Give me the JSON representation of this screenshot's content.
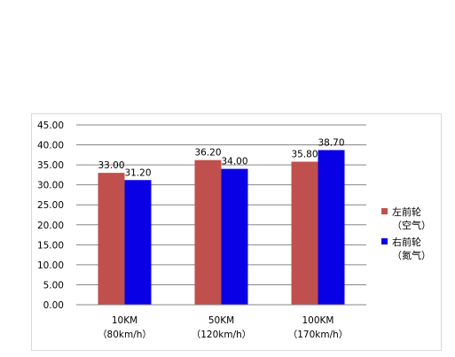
{
  "chart_data": {
    "type": "bar",
    "categories": [
      "10KM",
      "50KM",
      "100KM"
    ],
    "category_sublabels": [
      "（80km/h）",
      "（120km/h）",
      "（170km/h）"
    ],
    "series": [
      {
        "name": "左前轮（空气）",
        "label_line1": "左前轮",
        "label_line2": "（空气）",
        "color": "#C0504D",
        "values": [
          33.0,
          36.2,
          35.8
        ],
        "value_labels": [
          "33.00",
          "36.20",
          "35.80"
        ]
      },
      {
        "name": "右前轮（氮气）",
        "label_line1": "右前轮",
        "label_line2": "（氮气）",
        "color": "#0A00E6",
        "values": [
          31.2,
          34.0,
          38.7
        ],
        "value_labels": [
          "31.20",
          "34.00",
          "38.70"
        ]
      }
    ],
    "y_ticks": [
      "0.00",
      "5.00",
      "10.00",
      "15.00",
      "20.00",
      "25.00",
      "30.00",
      "35.00",
      "40.00",
      "45.00"
    ],
    "ylim": [
      0,
      45
    ],
    "grid": true,
    "legend_position": "right"
  }
}
